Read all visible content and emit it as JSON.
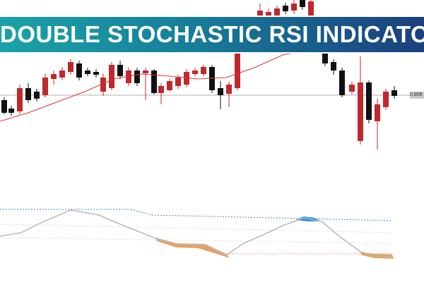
{
  "banner": {
    "title": "DOUBLE STOCHASTIC RSI INDICATOR"
  },
  "price_label": "0.808"
}
